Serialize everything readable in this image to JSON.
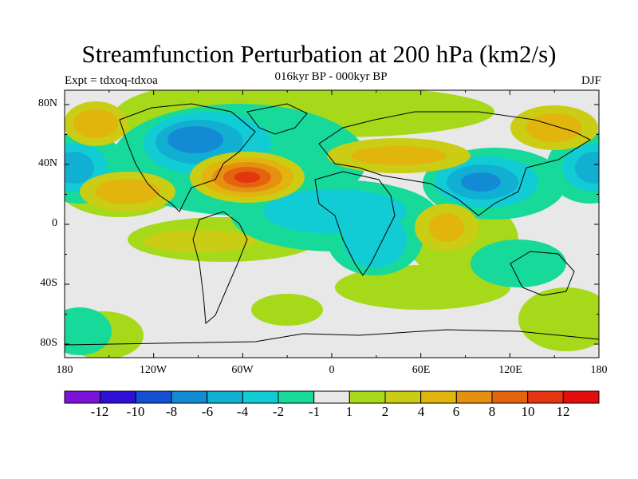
{
  "figure": {
    "title": "Streamfunction Perturbation at 200 hPa (km2/s)",
    "subtitle": "016kyr BP - 000kyr BP",
    "left_label": "Expt = tdxoq-tdxoa",
    "right_label": "DJF"
  },
  "axes": {
    "lat_labels": [
      "80N",
      "40N",
      "0",
      "40S",
      "80S"
    ],
    "lon_labels": [
      "180",
      "120W",
      "60W",
      "0",
      "60E",
      "120E",
      "180"
    ]
  },
  "colorbar": {
    "labels": [
      "-12",
      "-10",
      "-8",
      "-6",
      "-4",
      "-2",
      "-1",
      "1",
      "2",
      "4",
      "6",
      "8",
      "10",
      "12"
    ],
    "colors": [
      "#7a12d8",
      "#2d0fd6",
      "#1450d2",
      "#138bd4",
      "#11b0d2",
      "#12ccd5",
      "#16d99a",
      "#e8e8e8",
      "#a6d91a",
      "#cacd14",
      "#e2b40e",
      "#e69012",
      "#e4640e",
      "#e43410",
      "#e30d0d"
    ]
  },
  "colors": {
    "background": "#e8e8e8",
    "neg_strong": "#1450d2",
    "neg_mid": "#11b0d2",
    "neg_weak": "#16d99a",
    "pos_weak": "#a6d91a",
    "pos_mid": "#e2b40e",
    "pos_strong": "#e43410"
  }
}
